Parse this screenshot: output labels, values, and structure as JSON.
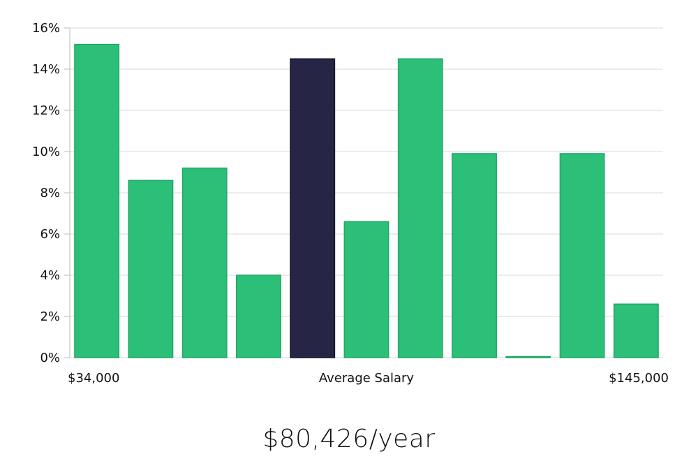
{
  "chart_data": {
    "type": "bar",
    "x_labels": {
      "left": "$34,000",
      "center": "Average Salary",
      "right": "$145,000"
    },
    "values": [
      15.2,
      8.6,
      9.2,
      4.0,
      14.5,
      6.6,
      14.5,
      9.9,
      0.0,
      9.9,
      2.6
    ],
    "highlight_index": 4,
    "y_ticks": [
      "0%",
      "2%",
      "4%",
      "6%",
      "8%",
      "10%",
      "12%",
      "14%",
      "16%"
    ],
    "ylim": [
      0,
      16
    ],
    "grid": true,
    "colors": {
      "bar": "#2bbf78",
      "bar_stroke": "#22a866",
      "highlight": "#272545",
      "highlight_stroke": "#15132b"
    }
  },
  "summary": {
    "average_salary": "$80,426/year"
  }
}
